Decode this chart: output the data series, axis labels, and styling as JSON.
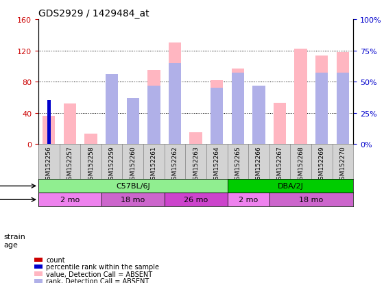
{
  "title": "GDS2929 / 1429484_at",
  "samples": [
    "GSM152256",
    "GSM152257",
    "GSM152258",
    "GSM152259",
    "GSM152260",
    "GSM152261",
    "GSM152262",
    "GSM152263",
    "GSM152264",
    "GSM152265",
    "GSM152266",
    "GSM152267",
    "GSM152268",
    "GSM152269",
    "GSM152270"
  ],
  "count_values": [
    0,
    0,
    0,
    0,
    0,
    0,
    0,
    0,
    0,
    0,
    0,
    0,
    0,
    0,
    0
  ],
  "rank_values": [
    35,
    0,
    0,
    0,
    0,
    0,
    0,
    0,
    0,
    0,
    0,
    0,
    0,
    0,
    0
  ],
  "absent_value": [
    36,
    52,
    13,
    57,
    42,
    95,
    130,
    15,
    82,
    97,
    75,
    53,
    122,
    113,
    118
  ],
  "absent_rank": [
    0,
    0,
    0,
    56,
    37,
    47,
    65,
    0,
    45,
    57,
    47,
    0,
    0,
    57,
    57
  ],
  "ylim_left": [
    0,
    160
  ],
  "ylim_right": [
    0,
    100
  ],
  "yticks_left": [
    0,
    40,
    80,
    120,
    160
  ],
  "yticks_right": [
    0,
    25,
    50,
    75,
    100
  ],
  "yticklabels_left": [
    "0",
    "40",
    "80",
    "120",
    "160"
  ],
  "yticklabels_right": [
    "0%",
    "25%",
    "50%",
    "75%",
    "100%"
  ],
  "strain_groups": [
    {
      "label": "C57BL/6J",
      "start": 0,
      "end": 9,
      "color": "#90ee90"
    },
    {
      "label": "DBA/2J",
      "start": 9,
      "end": 15,
      "color": "#00cc00"
    }
  ],
  "age_groups": [
    {
      "label": "2 mo",
      "start": 0,
      "end": 3,
      "color": "#ee82ee"
    },
    {
      "label": "18 mo",
      "start": 3,
      "end": 6,
      "color": "#da70d6"
    },
    {
      "label": "26 mo",
      "start": 6,
      "end": 9,
      "color": "#cc44cc"
    },
    {
      "label": "2 mo",
      "start": 9,
      "end": 11,
      "color": "#ee82ee"
    },
    {
      "label": "18 mo",
      "start": 11,
      "end": 15,
      "color": "#da70d6"
    }
  ],
  "color_count": "#cc0000",
  "color_rank": "#0000cc",
  "color_absent_value": "#ffb6c1",
  "color_absent_rank": "#b0b0e8",
  "bar_width": 0.6,
  "grid_color": "#000000",
  "bg_color": "#ffffff",
  "plot_bg": "#ffffff",
  "tick_color_left": "#cc0000",
  "tick_color_right": "#0000cc"
}
